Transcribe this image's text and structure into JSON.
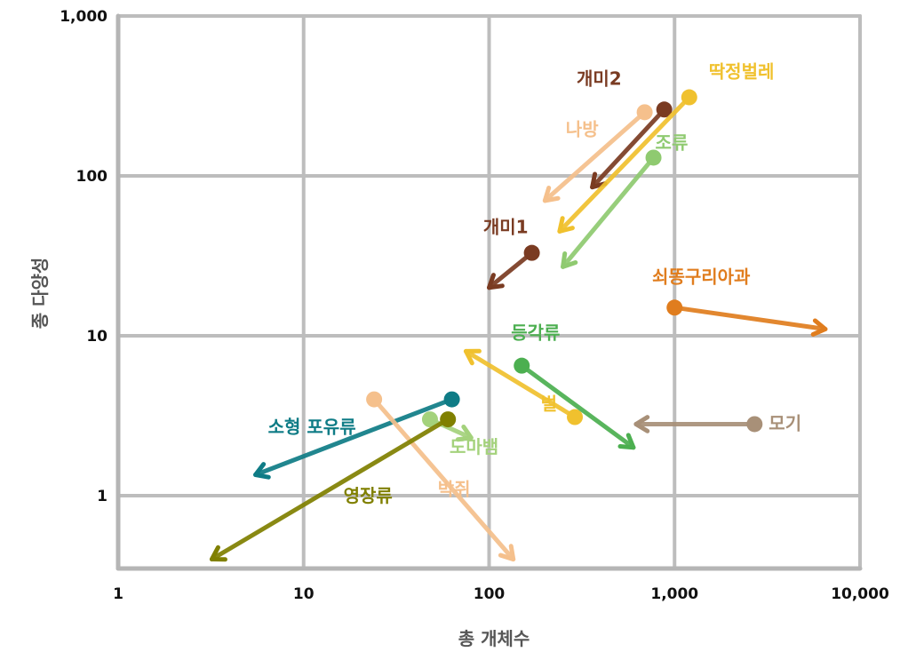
{
  "chart_data": {
    "type": "scatter",
    "subtype": "arrow-change",
    "xlabel": "총 개체수",
    "ylabel": "종 다양성",
    "xscale": "log",
    "yscale": "log",
    "xlim": [
      1,
      10000
    ],
    "ylim": [
      0.35,
      1000
    ],
    "grid": true,
    "x_ticks": [
      1,
      10,
      100,
      1000,
      10000
    ],
    "x_tick_labels": [
      "1",
      "10",
      "100",
      "1,000",
      "10,000"
    ],
    "y_ticks": [
      1,
      10,
      100,
      1000
    ],
    "y_tick_labels": [
      "1",
      "10",
      "100",
      "1,000"
    ],
    "series": [
      {
        "name": "개미2",
        "color": "#7a3b22",
        "start": [
          880,
          260
        ],
        "end": [
          360,
          85
        ]
      },
      {
        "name": "딱정벌레",
        "color": "#f0c12e",
        "start": [
          1200,
          310
        ],
        "end": [
          240,
          45
        ]
      },
      {
        "name": "나방",
        "color": "#f5c08c",
        "start": [
          690,
          250
        ],
        "end": [
          200,
          70
        ]
      },
      {
        "name": "조류",
        "color": "#8fca70",
        "start": [
          770,
          130
        ],
        "end": [
          250,
          27
        ]
      },
      {
        "name": "개미1",
        "color": "#7a3b22",
        "start": [
          170,
          33
        ],
        "end": [
          100,
          20
        ]
      },
      {
        "name": "쇠똥구리아과",
        "color": "#e07d1e",
        "start": [
          1000,
          15
        ],
        "end": [
          6500,
          11
        ]
      },
      {
        "name": "벌",
        "color": "#f0c12e",
        "start": [
          290,
          3.1
        ],
        "end": [
          75,
          8
        ]
      },
      {
        "name": "등각류",
        "color": "#4caf50",
        "start": [
          150,
          6.5
        ],
        "end": [
          600,
          2
        ]
      },
      {
        "name": "모기",
        "color": "#a89078",
        "start": [
          2700,
          2.8
        ],
        "end": [
          620,
          2.8
        ]
      },
      {
        "name": "소형 포유류",
        "color": "#0f7c86",
        "start": [
          63,
          4
        ],
        "end": [
          5.5,
          1.35
        ]
      },
      {
        "name": "박쥐",
        "color": "#f5c08c",
        "start": [
          24,
          4
        ],
        "end": [
          135,
          0.4
        ]
      },
      {
        "name": "도마뱀",
        "color": "#a4d27c",
        "start": [
          48,
          3
        ],
        "end": [
          80,
          2.3
        ]
      },
      {
        "name": "영장류",
        "color": "#808000",
        "start": [
          60,
          3
        ],
        "end": [
          3.2,
          0.4
        ]
      }
    ]
  }
}
